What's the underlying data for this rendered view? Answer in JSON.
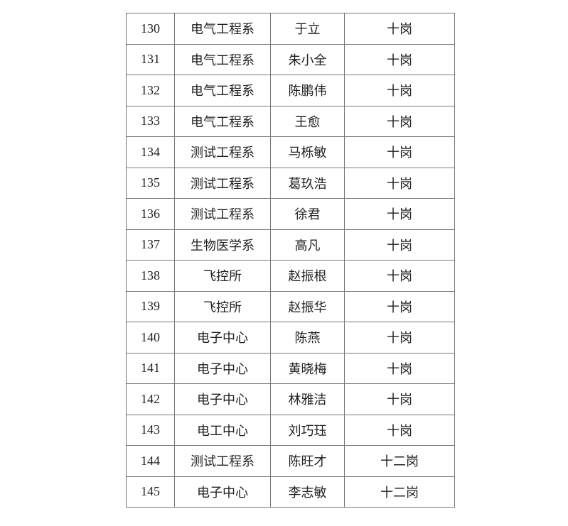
{
  "table": {
    "rows": [
      [
        "130",
        "电气工程系",
        "于立",
        "十岗"
      ],
      [
        "131",
        "电气工程系",
        "朱小全",
        "十岗"
      ],
      [
        "132",
        "电气工程系",
        "陈鹏伟",
        "十岗"
      ],
      [
        "133",
        "电气工程系",
        "王愈",
        "十岗"
      ],
      [
        "134",
        "测试工程系",
        "马栎敏",
        "十岗"
      ],
      [
        "135",
        "测试工程系",
        "葛玖浩",
        "十岗"
      ],
      [
        "136",
        "测试工程系",
        "徐君",
        "十岗"
      ],
      [
        "137",
        "生物医学系",
        "高凡",
        "十岗"
      ],
      [
        "138",
        "飞控所",
        "赵振根",
        "十岗"
      ],
      [
        "139",
        "飞控所",
        "赵振华",
        "十岗"
      ],
      [
        "140",
        "电子中心",
        "陈燕",
        "十岗"
      ],
      [
        "141",
        "电子中心",
        "黄晓梅",
        "十岗"
      ],
      [
        "142",
        "电子中心",
        "林雅洁",
        "十岗"
      ],
      [
        "143",
        "电工中心",
        "刘巧珏",
        "十岗"
      ],
      [
        "144",
        "测试工程系",
        "陈旺才",
        "十二岗"
      ],
      [
        "145",
        "电子中心",
        "李志敏",
        "十二岗"
      ]
    ]
  }
}
